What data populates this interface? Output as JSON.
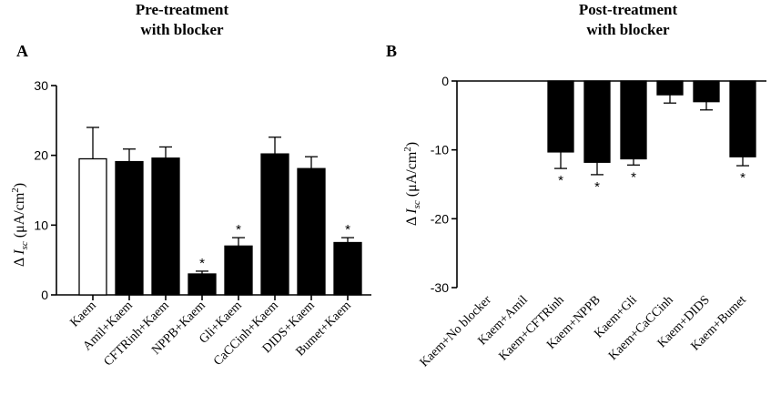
{
  "chart_data": [
    {
      "type": "bar",
      "panel_label": "A",
      "title_line1": "Pre-treatment",
      "title_line2": "with blocker",
      "ylabel_prefix": "Δ ",
      "ylabel_var": "I",
      "ylabel_sub": "sc",
      "ylabel_unit": " (μA/cm",
      "ylabel_sup": "2",
      "ylabel_close": ")",
      "ylim": [
        0,
        30
      ],
      "yticks": [
        0,
        10,
        20,
        30
      ],
      "tick_labels": [
        "0",
        "10",
        "20",
        "30"
      ],
      "categories": [
        "Kaem",
        "Amil+Kaem",
        "CFTRinh+Kaem",
        "NPPB+Kaem",
        "Gli+Kaem",
        "CaCCinh+Kaem",
        "DIDS+Kaem",
        "Bumet+Kaem"
      ],
      "values": [
        19.5,
        19.1,
        19.6,
        3.0,
        7.0,
        20.2,
        18.1,
        7.5
      ],
      "errors": [
        4.5,
        1.8,
        1.6,
        0.4,
        1.2,
        2.4,
        1.7,
        0.7
      ],
      "fills": [
        "#ffffff",
        "#000000",
        "#000000",
        "#000000",
        "#000000",
        "#000000",
        "#000000",
        "#000000"
      ],
      "significant": [
        false,
        false,
        false,
        true,
        true,
        false,
        false,
        true
      ],
      "sig_symbol": "*"
    },
    {
      "type": "bar",
      "panel_label": "B",
      "title_line1": "Post-treatment",
      "title_line2": "with blocker",
      "ylabel_prefix": "Δ ",
      "ylabel_var": "I",
      "ylabel_sub": "sc",
      "ylabel_unit": " (μA/cm",
      "ylabel_sup": "2",
      "ylabel_close": ")",
      "ylim": [
        -30,
        0
      ],
      "yticks": [
        0,
        -10,
        -20,
        -30
      ],
      "tick_labels": [
        "0",
        "-10",
        "-20",
        "-30"
      ],
      "categories": [
        "Kaem+No blocker",
        "Kaem+Amil",
        "Kaem+CFTRinh",
        "Kaem+NPPB",
        "Kaem+Gli",
        "Kaem+CaCCinh",
        "Kaem+DIDS",
        "Kaem+Bumet"
      ],
      "values": [
        0,
        0,
        -10.3,
        -11.8,
        -11.3,
        -2.0,
        -3.0,
        -11.0
      ],
      "errors": [
        0,
        0,
        2.4,
        1.8,
        0.9,
        1.2,
        1.2,
        1.3
      ],
      "fills": [
        "#000000",
        "#000000",
        "#000000",
        "#000000",
        "#000000",
        "#000000",
        "#000000",
        "#000000"
      ],
      "significant": [
        false,
        false,
        true,
        true,
        true,
        false,
        false,
        true
      ],
      "sig_symbol": "*"
    }
  ]
}
